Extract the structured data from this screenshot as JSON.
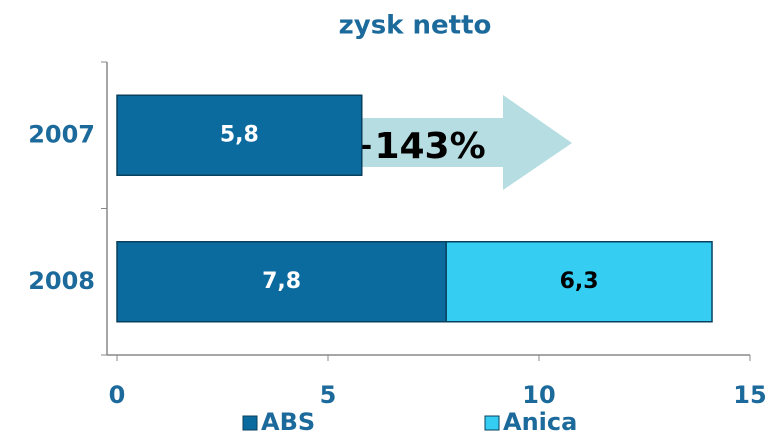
{
  "chart_data": {
    "type": "stacked-barh",
    "title": "zysk netto",
    "categories": [
      "2007",
      "2008"
    ],
    "series": [
      {
        "name": "ABS",
        "color": "#0b6b9f",
        "values": [
          5.8,
          7.8
        ],
        "value_labels": [
          "5,8",
          "7,8"
        ],
        "label_color": "#ffffff"
      },
      {
        "name": "Anica",
        "color": "#35cdf2",
        "values": [
          null,
          6.3
        ],
        "value_labels": [
          null,
          "6,3"
        ],
        "label_color": "#000000"
      }
    ],
    "annotations": [
      "+143%"
    ],
    "xlim": [
      0,
      15
    ],
    "xticks": [
      0,
      5,
      10,
      15
    ],
    "legend": "bottom"
  }
}
